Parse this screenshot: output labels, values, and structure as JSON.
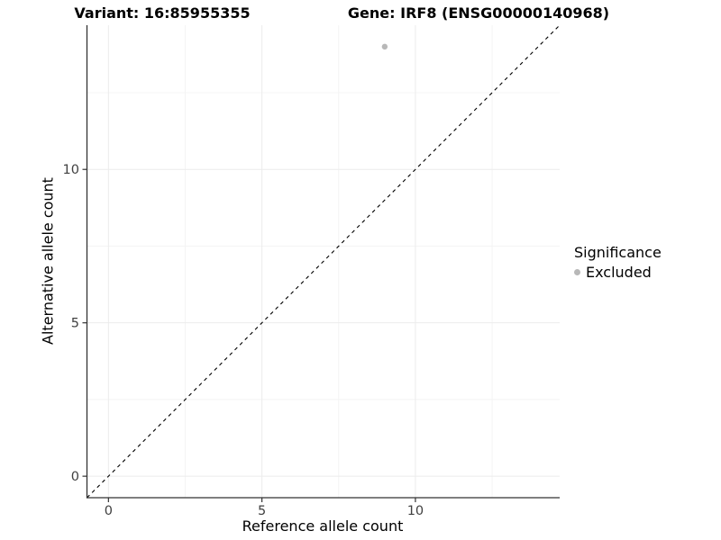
{
  "figure": {
    "title_left": "Variant: 16:85955355",
    "title_right": "Gene: IRF8 (ENSG00000140968)"
  },
  "chart_data": {
    "type": "scatter",
    "title": "Variant: 16:85955355 — Gene: IRF8 (ENSG00000140968)",
    "xlabel": "Reference allele count",
    "ylabel": "Alternative allele count",
    "xlim": [
      -0.7,
      14.7
    ],
    "ylim": [
      -0.7,
      14.7
    ],
    "x_ticks": [
      0,
      5,
      10
    ],
    "y_ticks": [
      0,
      5,
      10
    ],
    "x_minor_ticks": [
      2.5,
      7.5,
      12.5
    ],
    "y_minor_ticks": [
      2.5,
      7.5,
      12.5
    ],
    "grid": "major and minor, light gray, white background",
    "reference_line": {
      "kind": "abline",
      "slope": 1,
      "intercept": 0,
      "style": "dashed",
      "color": "#000000"
    },
    "series": [
      {
        "name": "Excluded",
        "color": "#b8b8b8",
        "points": [
          {
            "x": 9,
            "y": 14
          }
        ]
      }
    ],
    "legend": {
      "title": "Significance",
      "position": "right",
      "items": [
        {
          "label": "Excluded",
          "color": "#b8b8b8"
        }
      ]
    }
  },
  "colors": {
    "background": "#ffffff",
    "axis_line": "#333333",
    "tick_label": "#404040",
    "grid_major": "#ececec",
    "grid_minor": "#f4f4f4",
    "point": "#b8b8b8",
    "reference_line": "#000000"
  }
}
